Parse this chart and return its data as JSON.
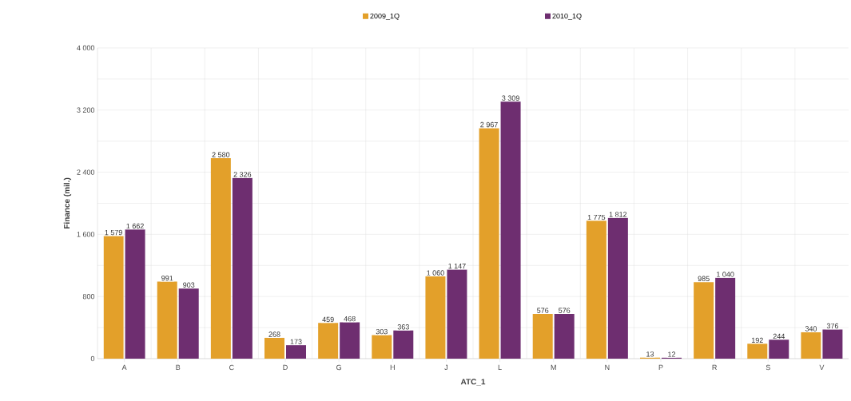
{
  "chart_data": {
    "type": "bar",
    "xlabel": "ATC_1",
    "ylabel": "Finance (mil.)",
    "categories": [
      "A",
      "B",
      "C",
      "D",
      "G",
      "H",
      "J",
      "L",
      "M",
      "N",
      "P",
      "R",
      "S",
      "V"
    ],
    "series": [
      {
        "name": "2009_1Q",
        "color": "#e3a02a",
        "values": [
          1579,
          991,
          2580,
          268,
          459,
          303,
          1060,
          2967,
          576,
          1775,
          13,
          985,
          192,
          340
        ],
        "value_labels": [
          "1 579",
          "991",
          "2 580",
          "268",
          "459",
          "303",
          "1 060",
          "2 967",
          "576",
          "1 775",
          "13",
          "985",
          "192",
          "340"
        ]
      },
      {
        "name": "2010_1Q",
        "color": "#6e2e70",
        "values": [
          1662,
          903,
          2326,
          173,
          468,
          363,
          1147,
          3309,
          576,
          1812,
          12,
          1040,
          244,
          376
        ],
        "value_labels": [
          "1 662",
          "903",
          "2 326",
          "173",
          "468",
          "363",
          "1 147",
          "3 309",
          "576",
          "1 812",
          "12",
          "1 040",
          "244",
          "376"
        ]
      }
    ],
    "ylim": [
      0,
      4000
    ],
    "yticks": [
      0,
      {
        "value": 800,
        "label": "800"
      },
      {
        "value": 1600,
        "label": "1 600"
      },
      {
        "value": 2400,
        "label": "2 400"
      },
      {
        "value": 3200,
        "label": "3 200"
      },
      {
        "value": 4000,
        "label": "4 000"
      }
    ],
    "grid": true,
    "legend": "top"
  }
}
